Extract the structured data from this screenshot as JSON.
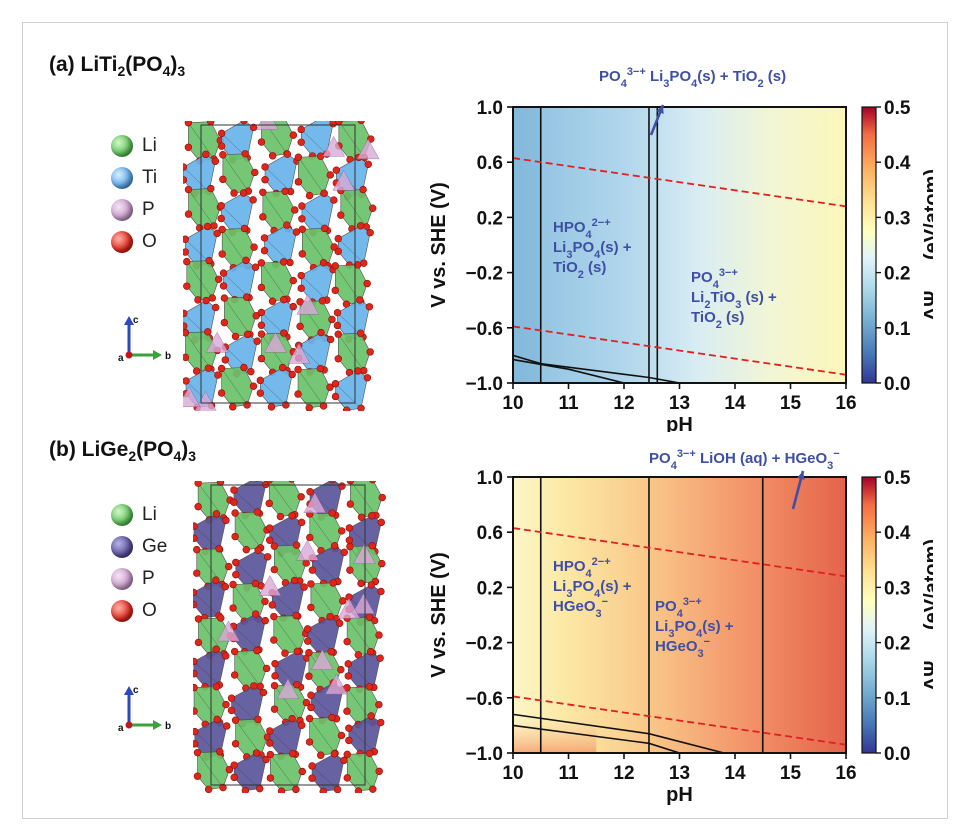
{
  "panels": [
    {
      "label": "(a) LiTi",
      "label_sub1": "2",
      "label_mid": "(PO",
      "label_sub2": "4",
      "label_end": ")",
      "label_sub3": "3",
      "legend": [
        {
          "label": "Li",
          "color": "#5cc25a"
        },
        {
          "label": "Ti",
          "color": "#5aa8e8"
        },
        {
          "label": "P",
          "color": "#c79ac8"
        },
        {
          "label": "O",
          "color": "#e0261a"
        }
      ],
      "axis_letters": {
        "c": "c",
        "a": "a",
        "b": "b"
      }
    },
    {
      "label": "(b) LiGe",
      "label_sub1": "2",
      "label_mid": "(PO",
      "label_sub2": "4",
      "label_end": ")",
      "label_sub3": "3",
      "legend": [
        {
          "label": "Li",
          "color": "#5cc25a"
        },
        {
          "label": "Ge",
          "color": "#5a4f9a"
        },
        {
          "label": "P",
          "color": "#c79ac8"
        },
        {
          "label": "O",
          "color": "#e0261a"
        }
      ],
      "axis_letters": {
        "c": "c",
        "a": "a",
        "b": "b"
      }
    }
  ],
  "chart_data": [
    {
      "type": "heatmap",
      "xlabel": "pH",
      "ylabel": "V vs. SHE (V)",
      "colorbar_label": "ΔΨpbx (eV/atom)",
      "xlim": [
        10,
        16
      ],
      "ylim": [
        -1.0,
        1.0
      ],
      "x_ticks": [
        "10",
        "11",
        "12",
        "13",
        "14",
        "15",
        "16"
      ],
      "y_ticks": [
        "1.0",
        "0.6",
        "0.2",
        "−0.2",
        "−0.6",
        "−1.0"
      ],
      "colorbar_ticks": [
        "0.5",
        "0.4",
        "0.3",
        "0.2",
        "0.1",
        "0.0"
      ],
      "colorbar_range": [
        0.0,
        0.5
      ],
      "boundaries_pH": [
        10.5,
        12.45,
        12.6
      ],
      "water_stability_lines": [
        {
          "pH": [
            10,
            16
          ],
          "V": [
            0.63,
            0.28
          ]
        },
        {
          "pH": [
            10,
            16
          ],
          "V": [
            -0.59,
            -0.94
          ]
        }
      ],
      "lower_boundaries": [
        {
          "pH": [
            10,
            10.5,
            12.45,
            13.0
          ],
          "V": [
            -0.8,
            -0.86,
            -0.96,
            -1.0
          ]
        },
        {
          "pH": [
            10,
            11,
            12.0
          ],
          "V": [
            -0.83,
            -0.9,
            -1.0
          ]
        }
      ],
      "regions": [
        {
          "label": "HPO42−+ Li3PO4(s) + TiO2 (s)",
          "lines": [
            "HPO4^2−+",
            "Li3PO4(s) +",
            "TiO2 (s)"
          ]
        },
        {
          "label": "PO43−+ Li2TiO3 (s) + TiO2 (s)",
          "lines": [
            "PO4^3−+",
            "Li2TiO3 (s) +",
            "TiO2 (s)"
          ]
        }
      ],
      "arrow_annotation": "PO43−+ Li3PO4(s) + TiO2 (s)",
      "delta_psi_gradient": [
        {
          "pH": 10.0,
          "value": 0.12
        },
        {
          "pH": 12.6,
          "value": 0.16
        },
        {
          "pH": 14.0,
          "value": 0.23
        },
        {
          "pH": 16.0,
          "value": 0.28
        }
      ]
    },
    {
      "type": "heatmap",
      "xlabel": "pH",
      "ylabel": "V vs. SHE (V)",
      "colorbar_label": "ΔΨpbx (eV/atom)",
      "xlim": [
        10,
        16
      ],
      "ylim": [
        -1.0,
        1.0
      ],
      "x_ticks": [
        "10",
        "11",
        "12",
        "13",
        "14",
        "15",
        "16"
      ],
      "y_ticks": [
        "1.0",
        "0.6",
        "0.2",
        "−0.2",
        "−0.6",
        "−1.0"
      ],
      "colorbar_ticks": [
        "0.5",
        "0.4",
        "0.3",
        "0.2",
        "0.1",
        "0.0"
      ],
      "colorbar_range": [
        0.0,
        0.5
      ],
      "boundaries_pH": [
        10.5,
        12.45,
        14.5
      ],
      "water_stability_lines": [
        {
          "pH": [
            10,
            16
          ],
          "V": [
            0.63,
            0.28
          ]
        },
        {
          "pH": [
            10,
            16
          ],
          "V": [
            -0.59,
            -0.94
          ]
        }
      ],
      "lower_boundaries": [
        {
          "pH": [
            10,
            12.45,
            13.8
          ],
          "V": [
            -0.72,
            -0.86,
            -1.0
          ]
        },
        {
          "pH": [
            10,
            12.45,
            13.0
          ],
          "V": [
            -0.8,
            -0.93,
            -1.0
          ]
        }
      ],
      "regions": [
        {
          "label": "HPO42−+ Li3PO4(s) + HGeO3−",
          "lines": [
            "HPO4^2−+",
            "Li3PO4(s) +",
            "HGeO3^−"
          ]
        },
        {
          "label": "PO43−+ Li3PO4(s) + HGeO3−",
          "lines": [
            "PO4^3−+",
            "Li3PO4(s) +",
            "HGeO3^−"
          ]
        }
      ],
      "arrow_annotation": "PO43−+ LiOH (aq) + HGeO3−",
      "delta_psi_gradient": [
        {
          "pH": 10.0,
          "value": 0.27
        },
        {
          "pH": 12.5,
          "value": 0.33
        },
        {
          "pH": 14.5,
          "value": 0.39
        },
        {
          "pH": 16.0,
          "value": 0.43
        }
      ]
    }
  ],
  "colors": {
    "annotation": "#3f4fa5",
    "water_line": "#e02020",
    "boundary": "#111111"
  }
}
